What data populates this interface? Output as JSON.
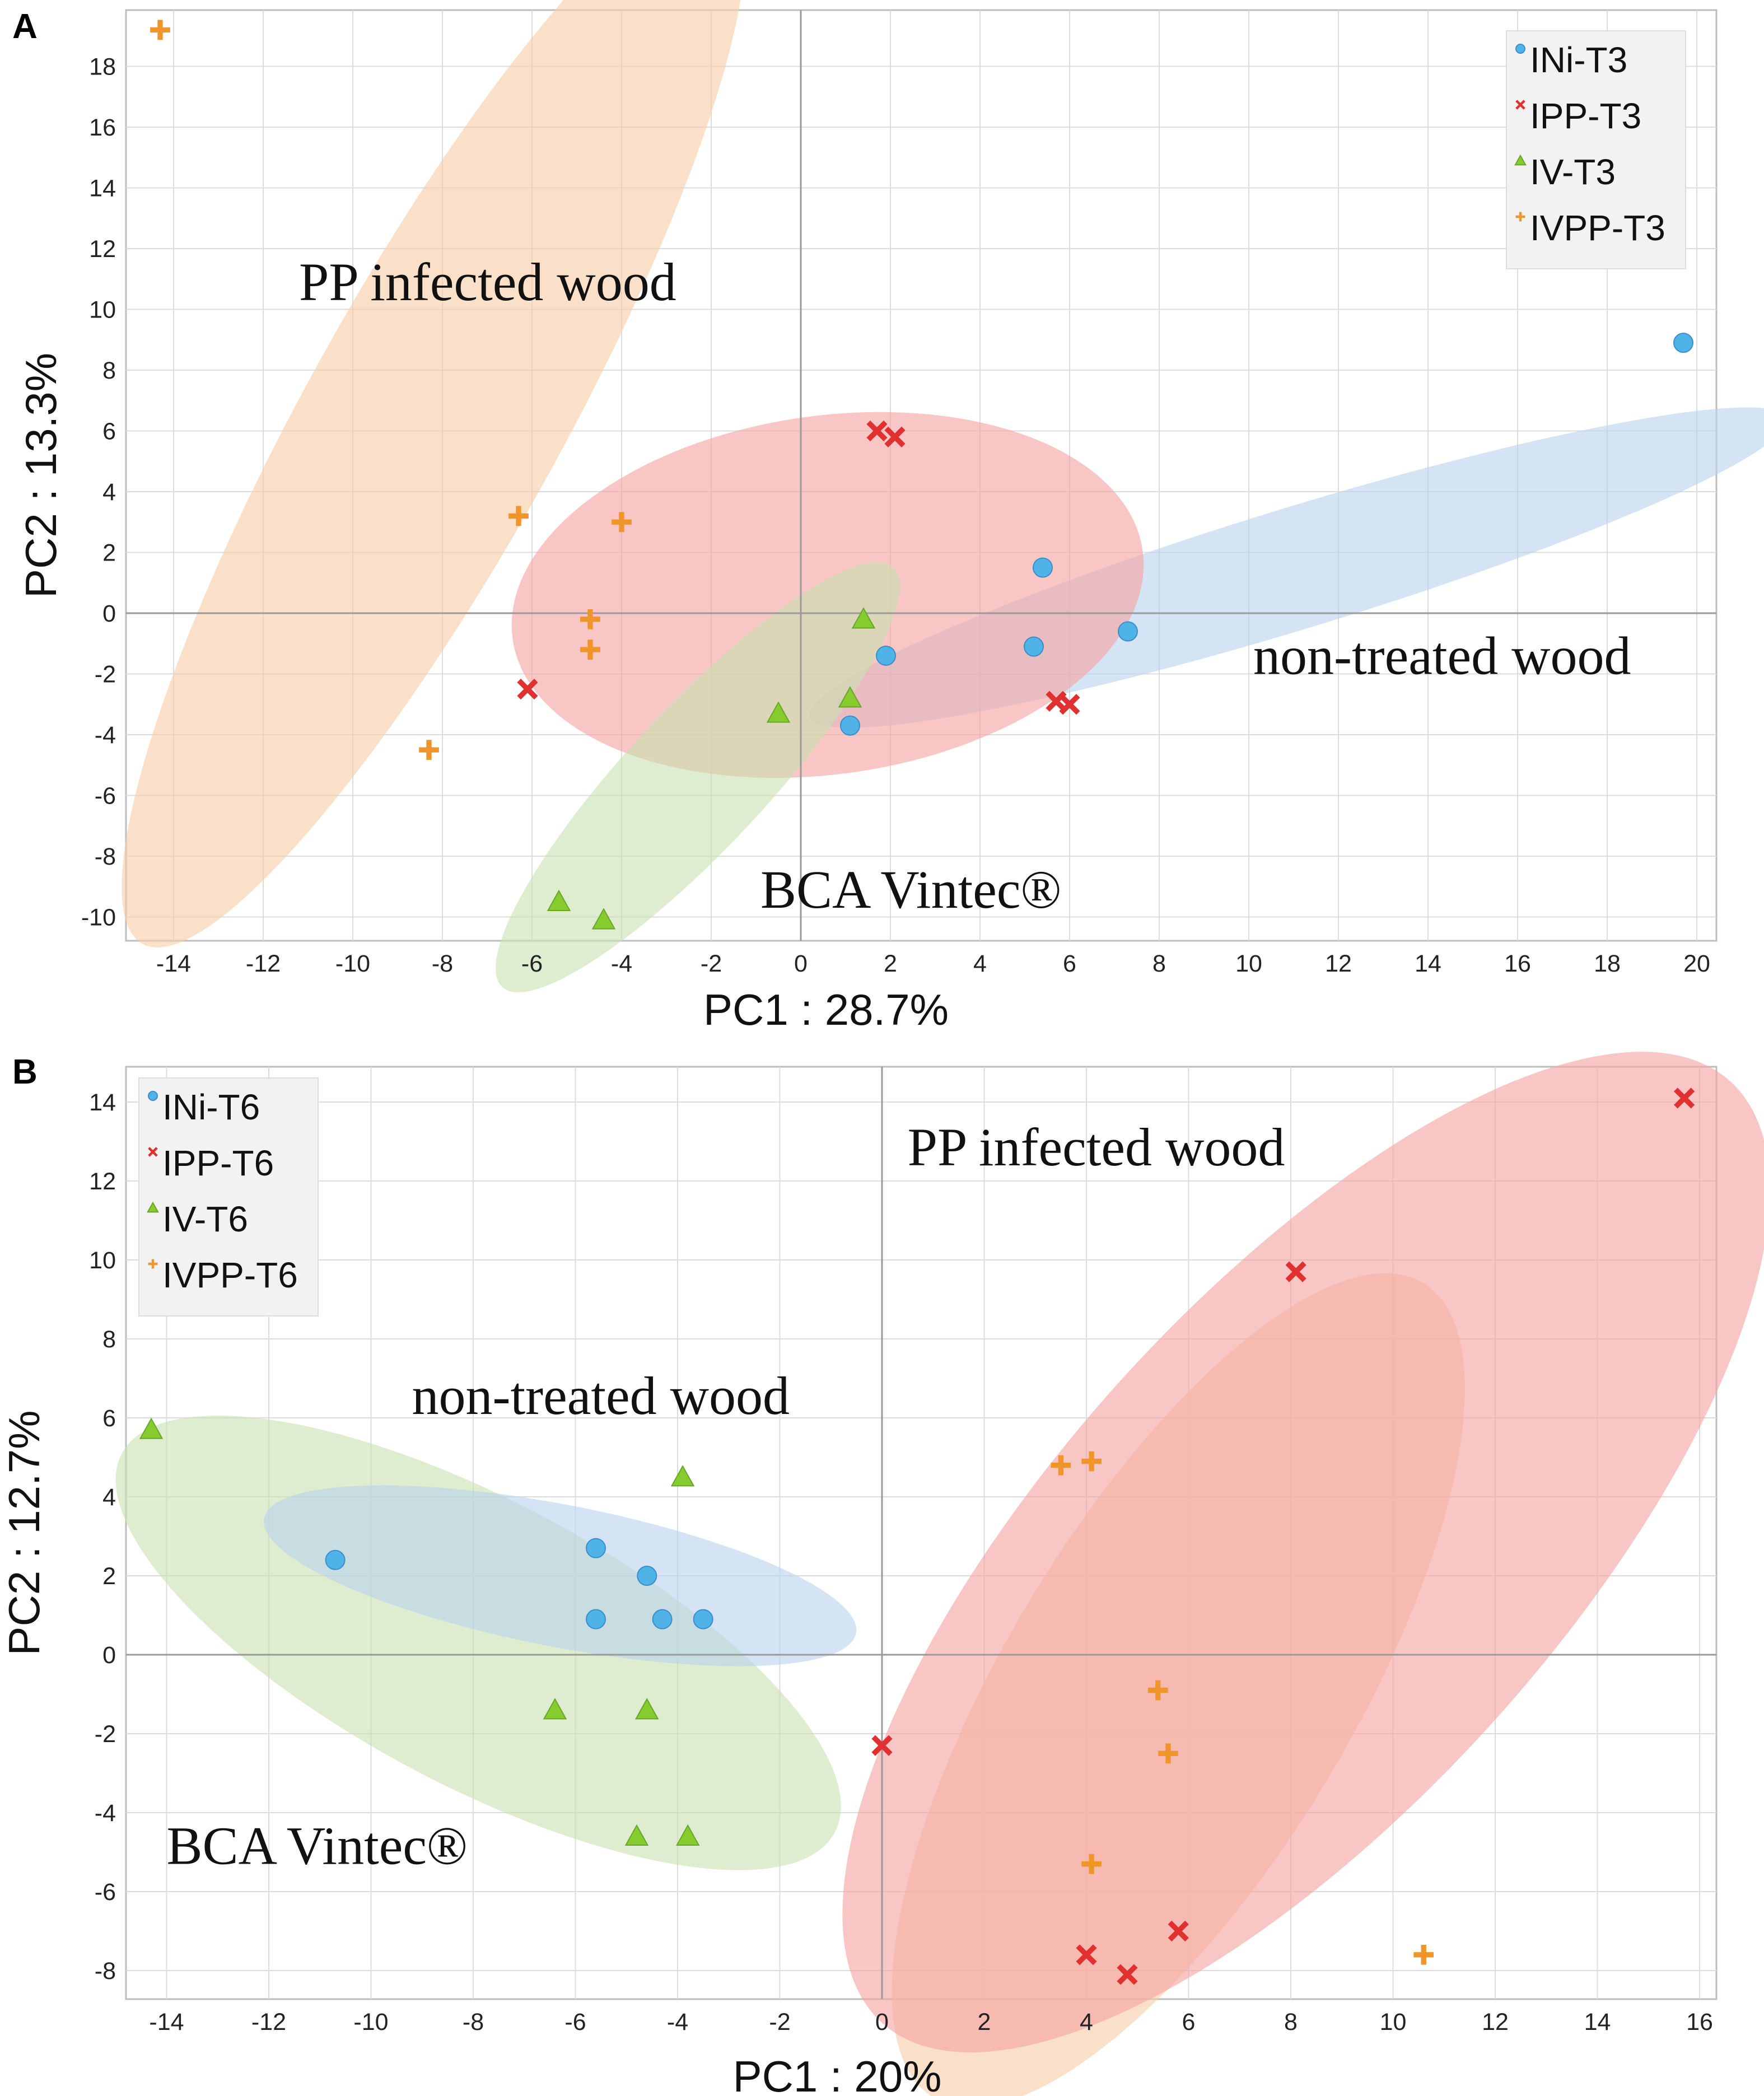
{
  "colors": {
    "ini": "#4fb3e8",
    "ipp": "#e03030",
    "iv": "#86cc2e",
    "ivpp": "#f0952a",
    "ellipse_ini": "#b9d3ee",
    "ellipse_ipp": "#f5a3a3",
    "ellipse_iv": "#c9e0b2",
    "ellipse_ivpp": "#f7cda8"
  },
  "chart_data": [
    {
      "panel": "A",
      "type": "scatter",
      "xlabel": "PC1 : 28.7%",
      "ylabel": "PC2 : 13.3%",
      "xlim": [
        -15,
        20.5
      ],
      "ylim": [
        -11,
        20
      ],
      "xticks": [
        "-14",
        "-12",
        "-10",
        "-8",
        "-6",
        "-4",
        "-2",
        "0",
        "2",
        "4",
        "6",
        "8",
        "10",
        "12",
        "14",
        "16",
        "18",
        "20"
      ],
      "yticks": [
        "-10",
        "-8",
        "-6",
        "-4",
        "-2",
        "0",
        "2",
        "4",
        "6",
        "8",
        "10",
        "12",
        "14",
        "16",
        "18"
      ],
      "legend": {
        "position": "top-right",
        "entries": [
          "INi-T3",
          "IPP-T3",
          "IV-T3",
          "IVPP-T3"
        ]
      },
      "annotations": [
        {
          "text": "PP infected wood",
          "x": -11.2,
          "y": 10.3
        },
        {
          "text": "non-treated wood",
          "x": 10.1,
          "y": -2.0
        },
        {
          "text": "BCA Vintec®",
          "x": -0.9,
          "y": -9.7
        }
      ],
      "ellipses": [
        {
          "group": "ivpp",
          "cx": -8.2,
          "cy": 6.4,
          "rx": 13.4,
          "ry": 4.2,
          "angle": 61
        },
        {
          "group": "ini",
          "cx": 11.1,
          "cy": 1.5,
          "rx": 11.4,
          "ry": 2.0,
          "angle": 17
        },
        {
          "group": "ipp",
          "cx": 0.6,
          "cy": 0.6,
          "rx": 7.1,
          "ry": 5.9,
          "angle": 8
        },
        {
          "group": "iv",
          "cx": -2.3,
          "cy": -5.4,
          "rx": 6.4,
          "ry": 2.3,
          "angle": 47
        }
      ],
      "series": [
        {
          "name": "INi-T3",
          "group": "ini",
          "marker": "circle",
          "points": [
            [
              19.7,
              8.9
            ],
            [
              5.4,
              1.5
            ],
            [
              7.3,
              -0.6
            ],
            [
              5.2,
              -1.1
            ],
            [
              1.9,
              -1.4
            ],
            [
              1.1,
              -3.7
            ]
          ]
        },
        {
          "name": "IPP-T3",
          "group": "ipp",
          "marker": "x",
          "points": [
            [
              1.7,
              6.0
            ],
            [
              2.1,
              5.8
            ],
            [
              -6.1,
              -2.5
            ],
            [
              5.7,
              -2.9
            ],
            [
              6.0,
              -3.0
            ]
          ]
        },
        {
          "name": "IV-T3",
          "group": "iv",
          "marker": "triangle",
          "points": [
            [
              1.4,
              -0.2
            ],
            [
              1.1,
              -2.8
            ],
            [
              -0.5,
              -3.3
            ],
            [
              -5.4,
              -9.5
            ],
            [
              -4.4,
              -10.1
            ]
          ]
        },
        {
          "name": "IVPP-T3",
          "group": "ivpp",
          "marker": "plus",
          "points": [
            [
              -14.3,
              19.2
            ],
            [
              -6.3,
              3.2
            ],
            [
              -4.0,
              3.0
            ],
            [
              -4.7,
              -0.2
            ],
            [
              -4.7,
              -1.2
            ],
            [
              -8.3,
              -4.5
            ]
          ]
        }
      ]
    },
    {
      "panel": "B",
      "type": "scatter",
      "xlabel": "PC1 : 20%",
      "ylabel": "PC2 : 12.7%",
      "xlim": [
        -15,
        16.5
      ],
      "ylim": [
        -8.6,
        14.8
      ],
      "xticks": [
        "-14",
        "-12",
        "-10",
        "-8",
        "-6",
        "-4",
        "-2",
        "0",
        "2",
        "4",
        "6",
        "8",
        "10",
        "12",
        "14",
        "16"
      ],
      "yticks": [
        "-8",
        "-6",
        "-4",
        "-2",
        "0",
        "2",
        "4",
        "6",
        "8",
        "10",
        "12",
        "14"
      ],
      "legend": {
        "position": "top-left",
        "entries": [
          "INi-T6",
          "IPP-T6",
          "IV-T6",
          "IVPP-T6"
        ]
      },
      "annotations": [
        {
          "text": "PP infected wood",
          "x": 0.5,
          "y": 12.4
        },
        {
          "text": "non-treated wood",
          "x": -9.2,
          "y": 6.1
        },
        {
          "text": "BCA Vintec®",
          "x": -14.0,
          "y": -5.3
        }
      ],
      "ellipses": [
        {
          "group": "ivpp",
          "cx": 5.8,
          "cy": -0.9,
          "rx": 9.3,
          "ry": 4.4,
          "angle": 59
        },
        {
          "group": "ipp",
          "cx": 8.3,
          "cy": 2.6,
          "rx": 12.4,
          "ry": 6.4,
          "angle": 48
        },
        {
          "group": "iv",
          "cx": -7.9,
          "cy": 0.3,
          "rx": 7.9,
          "ry": 3.6,
          "angle": -28
        },
        {
          "group": "ini",
          "cx": -6.3,
          "cy": 2.0,
          "rx": 5.9,
          "ry": 1.8,
          "angle": -11
        }
      ],
      "series": [
        {
          "name": "INi-T6",
          "group": "ini",
          "marker": "circle",
          "points": [
            [
              -10.7,
              2.4
            ],
            [
              -5.6,
              2.7
            ],
            [
              -4.6,
              2.0
            ],
            [
              -5.6,
              0.9
            ],
            [
              -4.3,
              0.9
            ],
            [
              -3.5,
              0.9
            ]
          ]
        },
        {
          "name": "IPP-T6",
          "group": "ipp",
          "marker": "x",
          "points": [
            [
              15.7,
              14.1
            ],
            [
              8.1,
              9.7
            ],
            [
              0.0,
              -2.3
            ],
            [
              5.8,
              -7.0
            ],
            [
              4.0,
              -7.6
            ],
            [
              4.8,
              -8.1
            ]
          ]
        },
        {
          "name": "IV-T6",
          "group": "iv",
          "marker": "triangle",
          "points": [
            [
              -14.3,
              5.7
            ],
            [
              -3.9,
              4.5
            ],
            [
              -6.4,
              -1.4
            ],
            [
              -4.6,
              -1.4
            ],
            [
              -4.8,
              -4.6
            ],
            [
              -3.8,
              -4.6
            ]
          ]
        },
        {
          "name": "IVPP-T6",
          "group": "ivpp",
          "marker": "plus",
          "points": [
            [
              3.5,
              4.8
            ],
            [
              4.1,
              4.9
            ],
            [
              5.4,
              -0.9
            ],
            [
              5.6,
              -2.5
            ],
            [
              4.1,
              -5.3
            ],
            [
              10.6,
              -7.6
            ]
          ]
        }
      ]
    }
  ]
}
